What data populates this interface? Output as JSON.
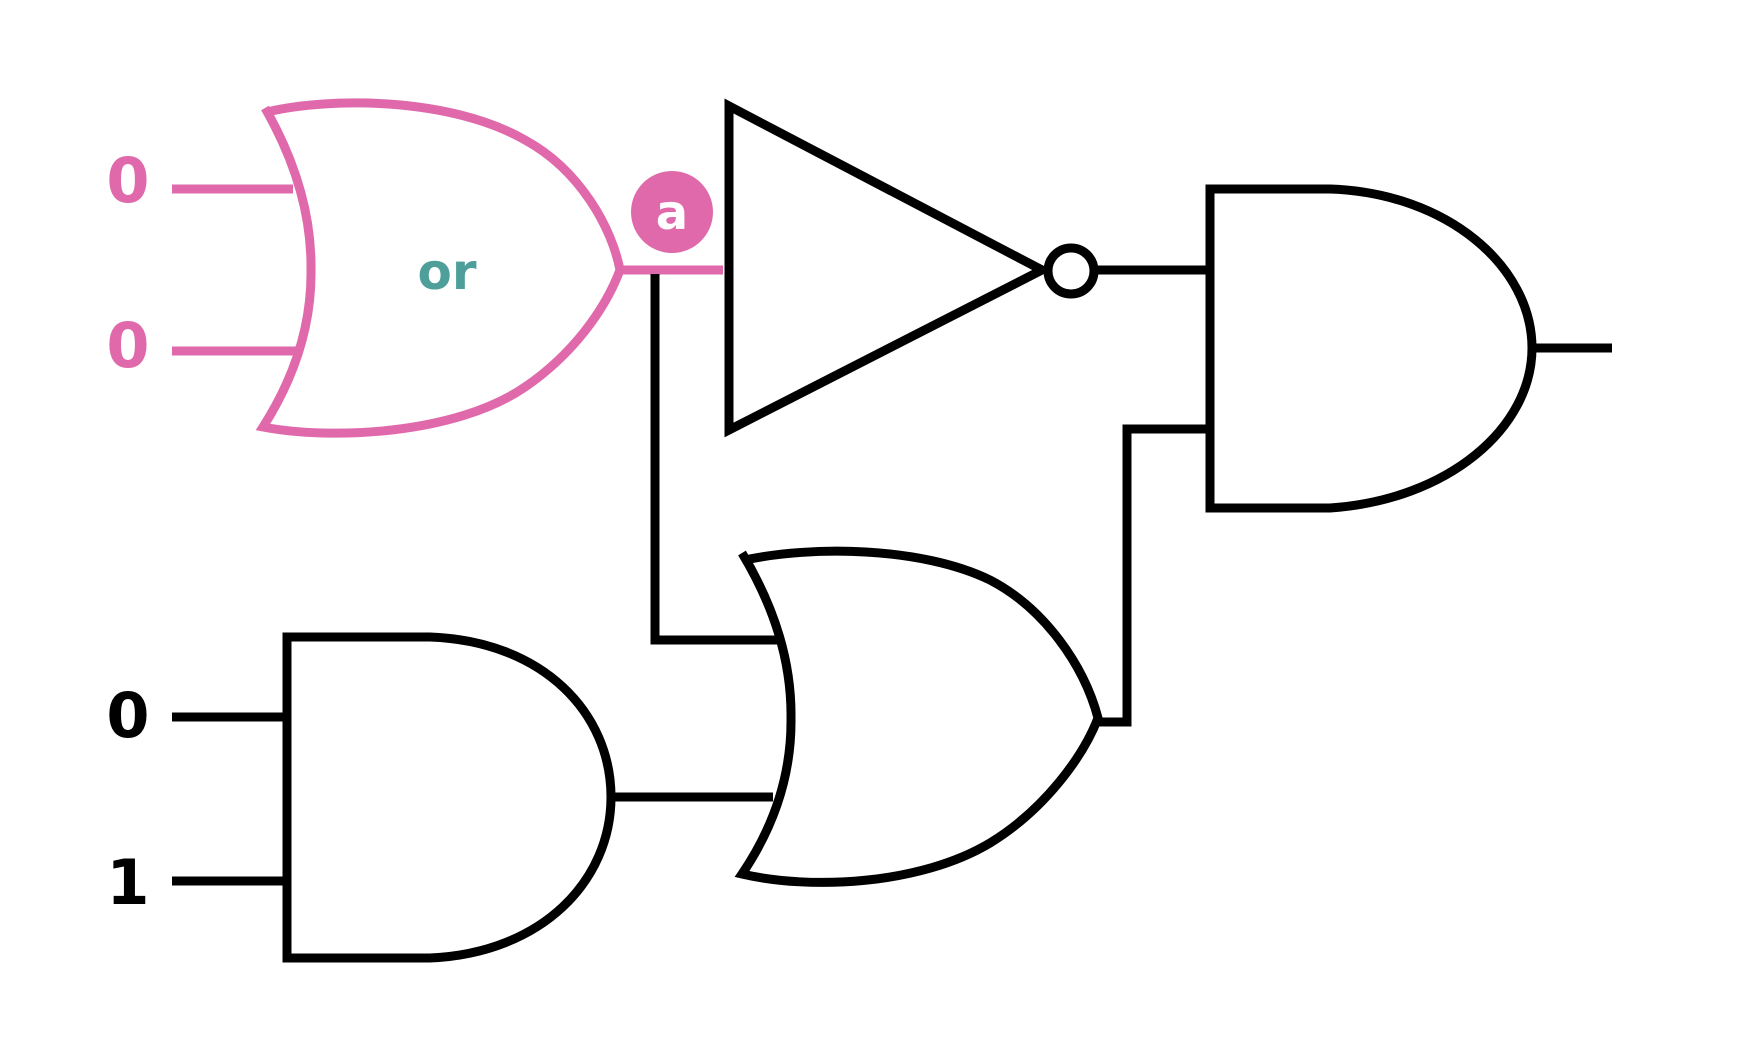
{
  "colors": {
    "highlight": "#df69ab",
    "gate_label": "#4e9f9a",
    "default": "#000000",
    "background": "#ffffff"
  },
  "inputs": [
    {
      "id": "in1",
      "value": "0",
      "highlighted": true
    },
    {
      "id": "in2",
      "value": "0",
      "highlighted": true
    },
    {
      "id": "in3",
      "value": "0",
      "highlighted": false
    },
    {
      "id": "in4",
      "value": "1",
      "highlighted": false
    }
  ],
  "gates": [
    {
      "id": "or-gate-1",
      "type": "OR",
      "label": "or",
      "highlighted": true
    },
    {
      "id": "not-gate",
      "type": "NOT",
      "highlighted": false
    },
    {
      "id": "and-gate-top",
      "type": "AND",
      "highlighted": false
    },
    {
      "id": "and-gate-bottom",
      "type": "AND",
      "highlighted": false
    },
    {
      "id": "or-gate-2",
      "type": "OR",
      "highlighted": false
    }
  ],
  "wire_tag": {
    "label": "a",
    "wire": "or-gate-1-output"
  }
}
